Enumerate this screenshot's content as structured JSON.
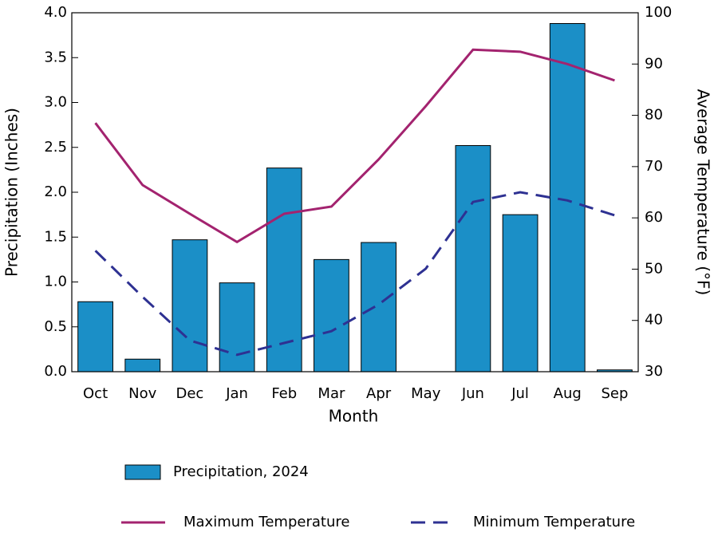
{
  "chart_data": {
    "type": "bar",
    "x_label": "Month",
    "y_label": "Precipitation (Inches)",
    "y2_label": "Average Temperature (°F)",
    "categories": [
      "Oct",
      "Nov",
      "Dec",
      "Jan",
      "Feb",
      "Mar",
      "Apr",
      "May",
      "Jun",
      "Jul",
      "Aug",
      "Sep"
    ],
    "series": [
      {
        "name": "Precipitation, 2024",
        "type": "bar",
        "color": "#1b8fc7",
        "axis": "y",
        "values": [
          0.78,
          0.14,
          1.47,
          0.99,
          2.27,
          1.25,
          1.44,
          0,
          2.52,
          1.75,
          3.88,
          0.02
        ]
      },
      {
        "name": "Maximum Temperature",
        "type": "line",
        "color": "#a3236f",
        "axis": "y2",
        "dash": "solid",
        "values": [
          78.5,
          66.4,
          60.8,
          55.3,
          60.8,
          62.2,
          71.4,
          81.8,
          92.8,
          92.4,
          90.0,
          86.8
        ]
      },
      {
        "name": "Minimum Temperature",
        "type": "line",
        "color": "#2e3192",
        "axis": "y2",
        "dash": "dashed",
        "values": [
          53.6,
          44.6,
          36.1,
          33.3,
          35.6,
          37.9,
          43.1,
          50.1,
          63.1,
          65.0,
          63.4,
          60.5
        ]
      }
    ],
    "ylim": [
      0,
      4
    ],
    "yticks": [
      {
        "value": 0,
        "label": "0.0"
      },
      0.5,
      {
        "value": 1,
        "label": "1.0"
      },
      1.5,
      {
        "value": 2,
        "label": "2.0"
      },
      2.5,
      {
        "value": 3,
        "label": "3.0"
      },
      3.5,
      {
        "value": 4,
        "label": "4.0"
      }
    ],
    "y2lim": [
      30,
      100
    ],
    "y2ticks": [
      30,
      40,
      50,
      60,
      70,
      80,
      90,
      100
    ],
    "grid": false
  }
}
